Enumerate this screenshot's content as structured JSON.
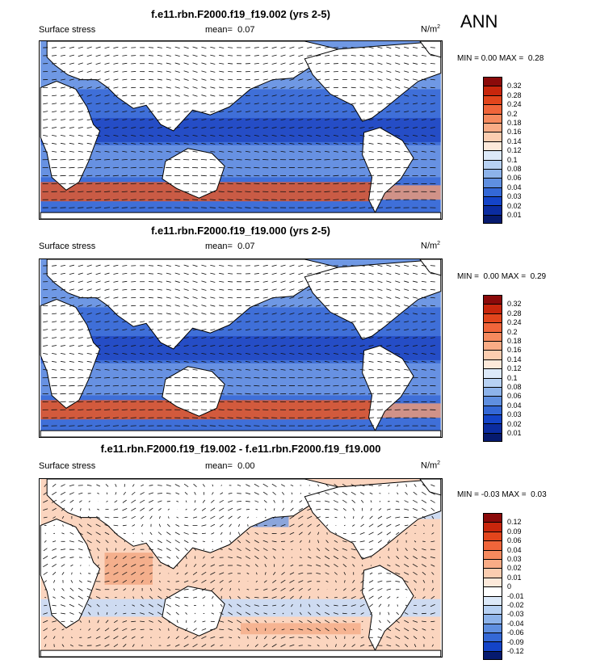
{
  "season": "ANN",
  "units_base": "N/m",
  "units_exp": "2",
  "panels": [
    {
      "title": "f.e11.rbn.F2000.f19_f19.002 (yrs 2-5)",
      "variable": "Surface stress",
      "mean_label": "mean=",
      "mean_value": "0.07",
      "min_label": "MIN =",
      "min_value": "0.00",
      "max_label": "MAX =",
      "max_value": "0.28"
    },
    {
      "title": "f.e11.rbn.F2000.f19_f19.000 (yrs 2-5)",
      "variable": "Surface stress",
      "mean_label": "mean=",
      "mean_value": "0.07",
      "min_label": "MIN =",
      "min_value": "0.00",
      "max_label": "MAX =",
      "max_value": "0.29"
    },
    {
      "title": "f.e11.rbn.F2000.f19_f19.002 - f.e11.rbn.F2000.f19_f19.000",
      "variable": "Surface stress",
      "mean_label": "mean=",
      "mean_value": "0.00",
      "min_label": "MIN =",
      "min_value": "-0.03",
      "max_label": "MAX =",
      "max_value": "0.03"
    }
  ],
  "colorbar_abs": {
    "labels": [
      "0.32",
      "0.28",
      "0.24",
      "0.2",
      "0.18",
      "0.16",
      "0.14",
      "0.12",
      "0.1",
      "0.08",
      "0.06",
      "0.04",
      "0.03",
      "0.02",
      "0.01"
    ],
    "colors": [
      "#8b0a0a",
      "#c8260c",
      "#e2451c",
      "#f0653a",
      "#f68a5e",
      "#f9ac86",
      "#fbcdb0",
      "#fde9da",
      "#dce9f9",
      "#b7d1f3",
      "#8db3ea",
      "#5f8fe0",
      "#3468d6",
      "#1444c8",
      "#0b2ca0",
      "#061a6e"
    ]
  },
  "colorbar_diff": {
    "labels": [
      "0.12",
      "0.09",
      "0.06",
      "0.04",
      "0.03",
      "0.02",
      "0.01",
      "0",
      "-0.01",
      "-0.02",
      "-0.03",
      "-0.04",
      "-0.06",
      "-0.09",
      "-0.12"
    ],
    "colors": [
      "#8b0a0a",
      "#c8260c",
      "#e2451c",
      "#f0653a",
      "#f68a5e",
      "#f9ac86",
      "#fbcdb0",
      "#fde9da",
      "#ffffff",
      "#dce9f9",
      "#b7d1f3",
      "#8db3ea",
      "#5f8fe0",
      "#3468d6",
      "#1444c8",
      "#061a6e"
    ]
  },
  "map_colors": {
    "land": "#ffffff",
    "ocean_base": "#3f6fd8",
    "ocean_light": "#8fb4ec",
    "ocean_dark": "#1b3fbf",
    "storm_track": "#e2582c",
    "storm_light": "#f59b74",
    "diff_pos": "#fbd5bf",
    "diff_neg": "#c9dcf6",
    "diff_neg_strong": "#6f98e2",
    "diff_pos_strong": "#f3a57f"
  }
}
